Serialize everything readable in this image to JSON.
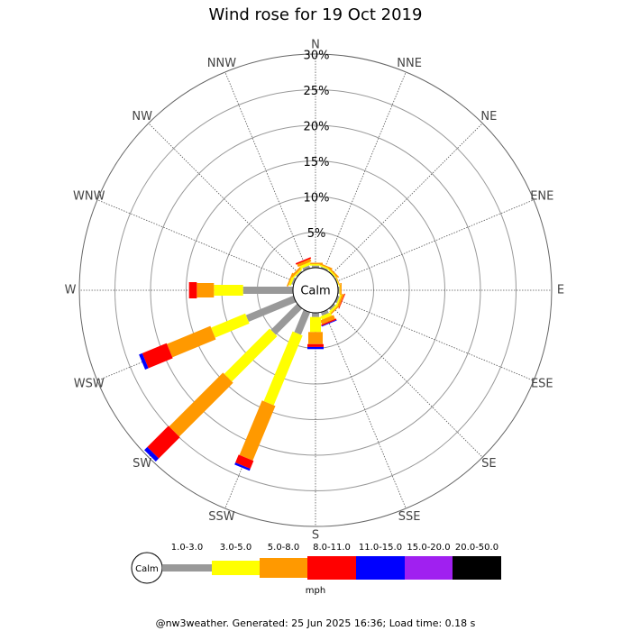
{
  "chart_data": {
    "type": "rose",
    "title": "Wind rose for 19 Oct 2019",
    "categories": [
      "N",
      "NNE",
      "NE",
      "ENE",
      "E",
      "ESE",
      "SE",
      "SSE",
      "S",
      "SSW",
      "SW",
      "WSW",
      "W",
      "WNW",
      "NW",
      "NNW"
    ],
    "series": [
      {
        "name": "1.0-3.0",
        "color": "#999999",
        "values": [
          0.3,
          0.2,
          0.1,
          0.1,
          0.2,
          0.3,
          0.3,
          0.5,
          0.6,
          3.4,
          5.2,
          7.2,
          7.0,
          0.3,
          0.2,
          0.4
        ]
      },
      {
        "name": "3.0-5.0",
        "color": "#ffff00",
        "values": [
          0.2,
          0.2,
          0.2,
          0.1,
          0.1,
          0.2,
          0.3,
          0.5,
          2.1,
          10.6,
          9.0,
          5.2,
          4.1,
          0.3,
          0.2,
          0.4
        ]
      },
      {
        "name": "5.0-8.0",
        "color": "#ff9900",
        "values": [
          0.2,
          0.2,
          0.2,
          0.1,
          0.2,
          0.3,
          0.2,
          0.6,
          1.7,
          8.3,
          10.7,
          6.6,
          2.4,
          0.2,
          0.3,
          0.4
        ]
      },
      {
        "name": "8.0-11.0",
        "color": "#ff0000",
        "values": [
          0,
          0,
          0,
          0,
          0,
          0.1,
          0,
          0.2,
          0.4,
          1.2,
          4.2,
          3.7,
          1.1,
          0,
          0,
          0.2
        ]
      },
      {
        "name": "11.0-15.0",
        "color": "#0000ff",
        "values": [
          0,
          0,
          0,
          0,
          0,
          0,
          0,
          0.1,
          0.3,
          0.3,
          0.6,
          0.5,
          0,
          0,
          0,
          0
        ]
      },
      {
        "name": "15.0-20.0",
        "color": "#a020f0",
        "values": [
          0,
          0,
          0,
          0,
          0,
          0,
          0,
          0,
          0,
          0,
          0,
          0,
          0,
          0,
          0,
          0
        ]
      },
      {
        "name": "20.0-50.0",
        "color": "#000000",
        "values": [
          0,
          0,
          0,
          0,
          0,
          0,
          0,
          0,
          0,
          0,
          0,
          0,
          0,
          0,
          0,
          0
        ]
      }
    ],
    "rlim": [
      0,
      30
    ],
    "rticks": [
      {
        "value": 5,
        "label": "5%"
      },
      {
        "value": 10,
        "label": "10%"
      },
      {
        "value": 15,
        "label": "15%"
      },
      {
        "value": 20,
        "label": "20%"
      },
      {
        "value": 25,
        "label": "25%"
      },
      {
        "value": 30,
        "label": "30%"
      }
    ],
    "calm_label": "Calm",
    "legend_unit": "mph",
    "footer": "@nw3weather. Generated: 25 Jun 2025 16:36; Load time: 0.18 s"
  }
}
